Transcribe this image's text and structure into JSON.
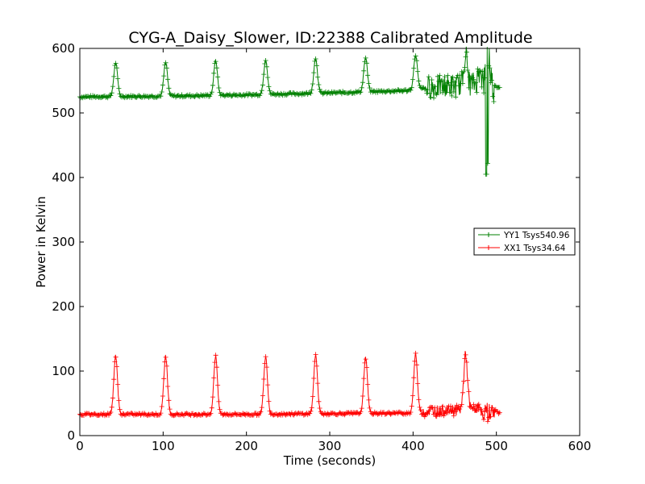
{
  "chart_data": {
    "type": "line",
    "title": "CYG-A_Daisy_Slower, ID:22388 Calibrated Amplitude",
    "xlabel": "Time (seconds)",
    "ylabel": "Power in Kelvin",
    "xlim": [
      0,
      600
    ],
    "ylim": [
      0,
      600
    ],
    "xticks": [
      "0",
      "100",
      "200",
      "300",
      "400",
      "500",
      "600"
    ],
    "yticks": [
      "0",
      "100",
      "200",
      "300",
      "400",
      "500",
      "600"
    ],
    "grid": false,
    "legend_position": "center-right",
    "marker": "+",
    "series": [
      {
        "name": "YY1 Tsys540.96",
        "color": "#008000",
        "baseline": [
          [
            0,
            525
          ],
          [
            100,
            526
          ],
          [
            200,
            528
          ],
          [
            300,
            531
          ],
          [
            400,
            535
          ],
          [
            420,
            540
          ],
          [
            480,
            545
          ],
          [
            505,
            540
          ]
        ],
        "peaks": [
          [
            43,
            578
          ],
          [
            103,
            578
          ],
          [
            163,
            581
          ],
          [
            223,
            583
          ],
          [
            283,
            585
          ],
          [
            343,
            585
          ],
          [
            403,
            590
          ],
          [
            463,
            590
          ],
          [
            480,
            565
          ],
          [
            490,
            595
          ]
        ],
        "noise_regions": [
          [
            415,
            480,
            540,
            18
          ],
          [
            482,
            497,
            545,
            25
          ]
        ],
        "dips": [
          [
            488,
            405
          ],
          [
            490,
            422
          ]
        ]
      },
      {
        "name": "XX1 Tsys34.64",
        "color": "#ff0000",
        "baseline": [
          [
            0,
            33
          ],
          [
            100,
            33
          ],
          [
            200,
            33
          ],
          [
            300,
            34
          ],
          [
            400,
            35
          ],
          [
            420,
            38
          ],
          [
            480,
            42
          ],
          [
            505,
            35
          ]
        ],
        "peaks": [
          [
            43,
            123
          ],
          [
            103,
            123
          ],
          [
            163,
            123
          ],
          [
            223,
            122
          ],
          [
            283,
            125
          ],
          [
            343,
            121
          ],
          [
            403,
            126
          ],
          [
            463,
            126
          ]
        ],
        "noise_regions": [
          [
            410,
            480,
            40,
            8
          ],
          [
            480,
            500,
            40,
            10
          ]
        ],
        "dips": [
          [
            485,
            25
          ],
          [
            490,
            22
          ]
        ]
      }
    ]
  }
}
